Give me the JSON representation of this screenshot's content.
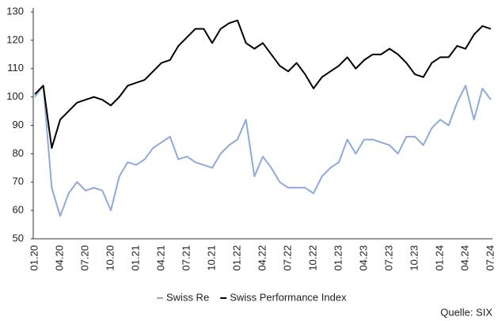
{
  "chart_data": {
    "type": "line",
    "categories": [
      "01.20",
      null,
      null,
      "04.20",
      null,
      null,
      "07.20",
      null,
      null,
      "10.20",
      null,
      null,
      "01.21",
      null,
      null,
      "04.21",
      null,
      null,
      "07.21",
      null,
      null,
      "10.21",
      null,
      null,
      "01.22",
      null,
      null,
      "04.22",
      null,
      null,
      "07.22",
      null,
      null,
      "10.22",
      null,
      null,
      "01.23",
      null,
      null,
      "04.23",
      null,
      null,
      "07.23",
      null,
      null,
      "10.23",
      null,
      null,
      "01.24",
      null,
      null,
      "04.24",
      null,
      null,
      "07.24"
    ],
    "series": [
      {
        "name": "Swiss Re",
        "color": "#8fa9dc",
        "values": [
          100,
          104,
          68,
          58,
          66,
          70,
          67,
          68,
          67,
          60,
          72,
          77,
          76,
          78,
          82,
          84,
          86,
          78,
          79,
          77,
          76,
          75,
          80,
          83,
          85,
          92,
          72,
          79,
          75,
          70,
          68,
          68,
          68,
          66,
          72,
          75,
          77,
          85,
          80,
          85,
          85,
          84,
          83,
          80,
          86,
          86,
          83,
          89,
          92,
          90,
          98,
          104,
          92,
          103,
          99
        ]
      },
      {
        "name": "Swiss Performance Index",
        "color": "#000000",
        "values": [
          101,
          104,
          82,
          92,
          95,
          98,
          99,
          100,
          99,
          97,
          100,
          104,
          105,
          106,
          109,
          112,
          113,
          118,
          121,
          124,
          124,
          119,
          124,
          126,
          127,
          119,
          117,
          119,
          115,
          111,
          109,
          112,
          108,
          103,
          107,
          109,
          111,
          114,
          110,
          113,
          115,
          115,
          117,
          115,
          112,
          108,
          107,
          112,
          114,
          114,
          118,
          117,
          122,
          125,
          124
        ]
      }
    ],
    "ylim": [
      50,
      130
    ],
    "yticks": [
      50,
      60,
      70,
      80,
      90,
      100,
      110,
      120,
      130
    ],
    "grid": false,
    "legend": "bottom",
    "source": "Quelle: SIX"
  }
}
